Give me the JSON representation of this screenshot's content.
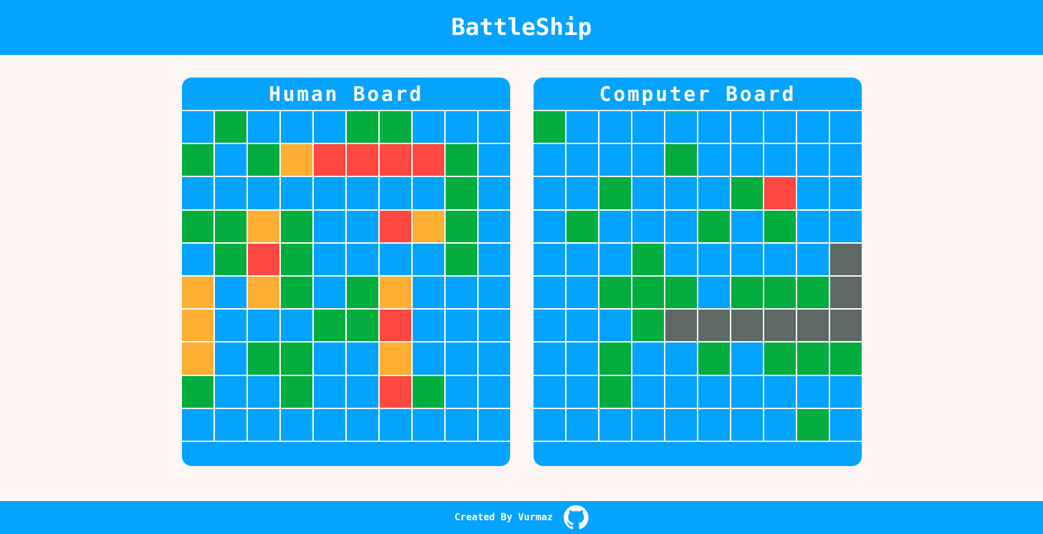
{
  "header": {
    "title": "BattleShip"
  },
  "human_board": {
    "title": "Human Board",
    "grid": [
      [
        "water",
        "ship",
        "water",
        "water",
        "water",
        "ship",
        "ship",
        "water",
        "water",
        "water"
      ],
      [
        "ship",
        "water",
        "ship",
        "miss",
        "hit",
        "hit",
        "hit",
        "hit",
        "ship",
        "water"
      ],
      [
        "water",
        "water",
        "water",
        "water",
        "water",
        "water",
        "water",
        "water",
        "ship",
        "water"
      ],
      [
        "ship",
        "ship",
        "miss",
        "ship",
        "water",
        "water",
        "hit",
        "miss",
        "ship",
        "water"
      ],
      [
        "water",
        "ship",
        "hit",
        "ship",
        "water",
        "water",
        "water",
        "water",
        "ship",
        "water"
      ],
      [
        "miss",
        "water",
        "miss",
        "ship",
        "water",
        "ship",
        "miss",
        "water",
        "water",
        "water"
      ],
      [
        "miss",
        "water",
        "water",
        "water",
        "ship",
        "ship",
        "hit",
        "water",
        "water",
        "water"
      ],
      [
        "miss",
        "water",
        "ship",
        "ship",
        "water",
        "water",
        "miss",
        "water",
        "water",
        "water"
      ],
      [
        "ship",
        "water",
        "water",
        "ship",
        "water",
        "water",
        "hit",
        "ship",
        "water",
        "water"
      ],
      [
        "water",
        "water",
        "water",
        "water",
        "water",
        "water",
        "water",
        "water",
        "water",
        "water"
      ]
    ]
  },
  "computer_board": {
    "title": "Computer Board",
    "grid": [
      [
        "ship",
        "water",
        "water",
        "water",
        "water",
        "water",
        "water",
        "water",
        "water",
        "water"
      ],
      [
        "water",
        "water",
        "water",
        "water",
        "ship",
        "water",
        "water",
        "water",
        "water",
        "water"
      ],
      [
        "water",
        "water",
        "ship",
        "water",
        "water",
        "water",
        "ship",
        "hit",
        "water",
        "water"
      ],
      [
        "water",
        "ship",
        "water",
        "water",
        "water",
        "ship",
        "water",
        "ship",
        "water",
        "water"
      ],
      [
        "water",
        "water",
        "water",
        "ship",
        "water",
        "water",
        "water",
        "water",
        "water",
        "sunk"
      ],
      [
        "water",
        "water",
        "ship",
        "ship",
        "ship",
        "water",
        "ship",
        "ship",
        "ship",
        "sunk"
      ],
      [
        "water",
        "water",
        "water",
        "ship",
        "sunk",
        "sunk",
        "sunk",
        "sunk",
        "sunk",
        "sunk"
      ],
      [
        "water",
        "water",
        "ship",
        "water",
        "water",
        "ship",
        "water",
        "ship",
        "ship",
        "ship"
      ],
      [
        "water",
        "water",
        "ship",
        "water",
        "water",
        "water",
        "water",
        "water",
        "water",
        "water"
      ],
      [
        "water",
        "water",
        "water",
        "water",
        "water",
        "water",
        "water",
        "water",
        "ship",
        "water"
      ]
    ],
    "hover_cell": [
      0,
      4
    ]
  },
  "colors": {
    "primary": "#03a3fe",
    "ship": "#03ad3e",
    "hit": "#fd4741",
    "miss": "#fdae33",
    "sunk": "#5e6966",
    "background": "#fdf6f5"
  },
  "footer": {
    "text": "Created By Vurmaz",
    "icon": "github-icon"
  }
}
